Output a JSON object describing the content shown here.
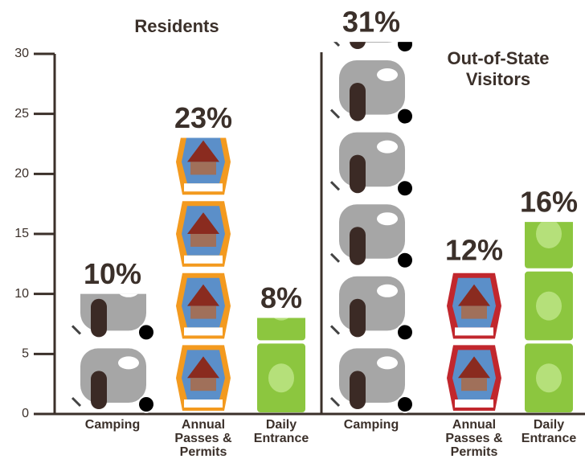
{
  "chart_data": {
    "type": "bar",
    "categories": [
      "Camping",
      "Annual Passes & Permits",
      "Daily Entrance"
    ],
    "series": [
      {
        "name": "Residents",
        "colors": [
          "#a6a6a6",
          "#f39a1f",
          "#8cc63f"
        ],
        "values": [
          10,
          23,
          8
        ],
        "value_labels": [
          "10%",
          "23%",
          "8%"
        ]
      },
      {
        "name": "Out-of-State Visitors",
        "colors": [
          "#a6a6a6",
          "#c1272d",
          "#8cc63f"
        ],
        "values": [
          31,
          12,
          16
        ],
        "value_labels": [
          "31%",
          "12%",
          "16%"
        ]
      }
    ],
    "ylim": [
      0,
      30
    ],
    "yticks": [
      0,
      5,
      10,
      15,
      20,
      25,
      30
    ]
  }
}
